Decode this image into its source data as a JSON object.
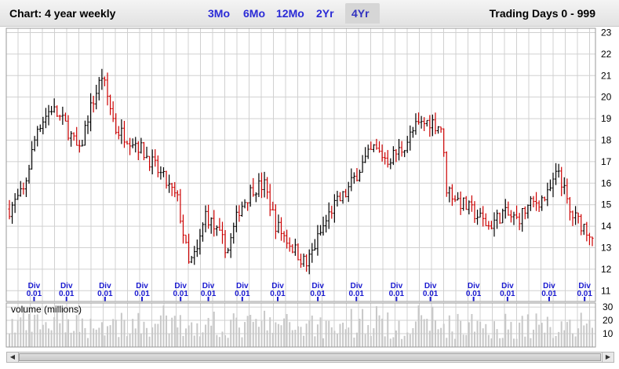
{
  "header": {
    "title": "Chart: 4 year weekly",
    "range_label": "Trading Days 0 - 999",
    "tabs": [
      {
        "label": "3Mo",
        "active": false
      },
      {
        "label": "6Mo",
        "active": false
      },
      {
        "label": "12Mo",
        "active": false
      },
      {
        "label": "2Yr",
        "active": false
      },
      {
        "label": "4Yr",
        "active": true
      }
    ]
  },
  "colors": {
    "up": "#000000",
    "down": "#cc0000",
    "grid": "#d0d0d0",
    "div_marker": "#1a1ad0",
    "volume": "#c8c8c8"
  },
  "icons": {
    "scroll_left": "triangle-left-icon",
    "scroll_right": "triangle-right-icon"
  },
  "chart_data": [
    {
      "type": "line",
      "subtype": "ohlc-weekly",
      "y_ticks": [
        "11",
        "12",
        "13",
        "14",
        "15",
        "16",
        "17",
        "18",
        "19",
        "20",
        "21",
        "22",
        "23"
      ],
      "ylim": [
        10.5,
        23.2
      ],
      "x_range": [
        0,
        208
      ],
      "price_path": [
        {
          "x": 0,
          "y": 14.8
        },
        {
          "x": 5,
          "y": 15.6
        },
        {
          "x": 10,
          "y": 18.6
        },
        {
          "x": 15,
          "y": 19.5
        },
        {
          "x": 20,
          "y": 18.7
        },
        {
          "x": 25,
          "y": 17.4
        },
        {
          "x": 28,
          "y": 19.1
        },
        {
          "x": 33,
          "y": 21.0
        },
        {
          "x": 38,
          "y": 18.5
        },
        {
          "x": 45,
          "y": 17.9
        },
        {
          "x": 50,
          "y": 17.1
        },
        {
          "x": 55,
          "y": 16.2
        },
        {
          "x": 60,
          "y": 15.2
        },
        {
          "x": 64,
          "y": 12.2
        },
        {
          "x": 67,
          "y": 12.8
        },
        {
          "x": 70,
          "y": 14.6
        },
        {
          "x": 74,
          "y": 13.7
        },
        {
          "x": 78,
          "y": 12.9
        },
        {
          "x": 82,
          "y": 14.8
        },
        {
          "x": 87,
          "y": 15.8
        },
        {
          "x": 91,
          "y": 15.9
        },
        {
          "x": 95,
          "y": 14.1
        },
        {
          "x": 100,
          "y": 13.2
        },
        {
          "x": 106,
          "y": 12.2
        },
        {
          "x": 110,
          "y": 13.4
        },
        {
          "x": 115,
          "y": 14.8
        },
        {
          "x": 120,
          "y": 15.5
        },
        {
          "x": 125,
          "y": 16.7
        },
        {
          "x": 130,
          "y": 17.6
        },
        {
          "x": 135,
          "y": 17.1
        },
        {
          "x": 140,
          "y": 17.6
        },
        {
          "x": 145,
          "y": 18.6
        },
        {
          "x": 150,
          "y": 18.9
        },
        {
          "x": 154,
          "y": 18.6
        },
        {
          "x": 156,
          "y": 15.8
        },
        {
          "x": 160,
          "y": 15.2
        },
        {
          "x": 166,
          "y": 14.6
        },
        {
          "x": 171,
          "y": 14.0
        },
        {
          "x": 176,
          "y": 14.6
        },
        {
          "x": 181,
          "y": 14.3
        },
        {
          "x": 186,
          "y": 15.0
        },
        {
          "x": 192,
          "y": 15.4
        },
        {
          "x": 196,
          "y": 16.6
        },
        {
          "x": 200,
          "y": 14.6
        },
        {
          "x": 205,
          "y": 14.0
        },
        {
          "x": 208,
          "y": 13.6
        }
      ]
    },
    {
      "type": "bar",
      "title": "volume (millions)",
      "y_ticks": [
        "10",
        "20",
        "30"
      ],
      "ylim": [
        0,
        33
      ]
    }
  ],
  "dividends": {
    "label_top": "Div",
    "label_bottom": "0.01",
    "positions": [
      16,
      37,
      62,
      86,
      111,
      129,
      151,
      174,
      200,
      225,
      251,
      273,
      301,
      323,
      350,
      373
    ]
  }
}
